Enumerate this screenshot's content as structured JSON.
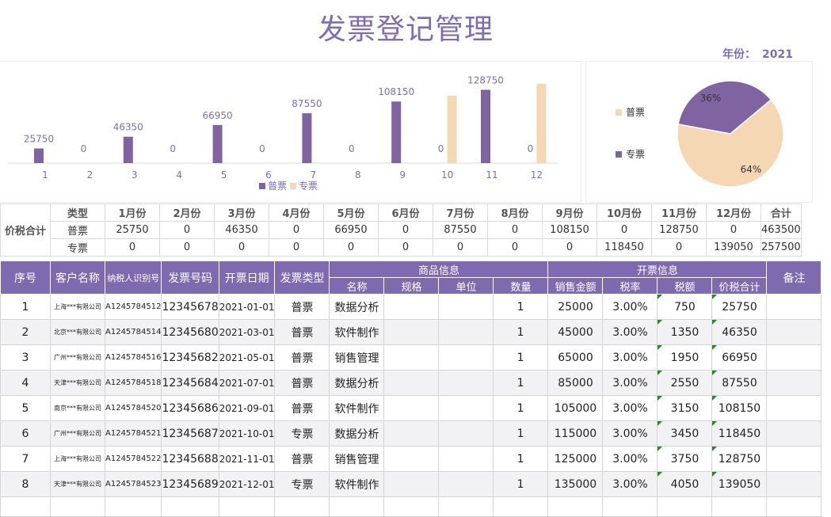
{
  "title": "发票登记管理",
  "year": {
    "label": "年份：",
    "value": "2021"
  },
  "colors": {
    "accent": "#7F6DB3",
    "general": "#8064A2",
    "special": "#F5D7B4"
  },
  "chart_data": [
    {
      "type": "bar",
      "categories": [
        "1",
        "2",
        "3",
        "4",
        "5",
        "6",
        "7",
        "8",
        "9",
        "10",
        "11",
        "12"
      ],
      "series": [
        {
          "name": "普票",
          "values": [
            25750,
            0,
            46350,
            0,
            66950,
            0,
            87550,
            0,
            108150,
            0,
            128750,
            0
          ]
        },
        {
          "name": "专票",
          "values": [
            0,
            0,
            0,
            0,
            0,
            0,
            0,
            0,
            0,
            118450,
            0,
            139050
          ]
        }
      ],
      "data_labels": [
        "25750",
        "0",
        "46350",
        "0",
        "66950",
        "0",
        "87550",
        "0",
        "108150",
        "0",
        "128750",
        "0"
      ],
      "legend": [
        "普票",
        "专票"
      ],
      "legend_position": "bottom",
      "grid": false
    },
    {
      "type": "pie",
      "categories": [
        "普票",
        "专票"
      ],
      "values": [
        64,
        36
      ],
      "labels": [
        "64%",
        "36%"
      ],
      "legend_position": "left"
    }
  ],
  "summary": {
    "row_label": "价税合计",
    "type_header": "类型",
    "months": [
      "1月份",
      "2月份",
      "3月份",
      "4月份",
      "5月份",
      "6月份",
      "7月份",
      "8月份",
      "9月份",
      "10月份",
      "11月份",
      "12月份"
    ],
    "total_header": "合计",
    "rows": [
      {
        "type": "普票",
        "values": [
          "25750",
          "0",
          "46350",
          "0",
          "66950",
          "0",
          "87550",
          "0",
          "108150",
          "0",
          "128750",
          "0"
        ],
        "total": "463500"
      },
      {
        "type": "专票",
        "values": [
          "0",
          "0",
          "0",
          "0",
          "0",
          "0",
          "0",
          "0",
          "0",
          "118450",
          "0",
          "139050"
        ],
        "total": "257500"
      }
    ]
  },
  "table": {
    "headers": {
      "seq": "序号",
      "customer": "客户名称",
      "taxid": "纳税人识别号",
      "invoice_no": "发票号码",
      "date": "开票日期",
      "inv_type": "发票类型",
      "goods": "商品信息",
      "invoice_info": "开票信息",
      "remark": "备注"
    },
    "subheaders": {
      "name": "名称",
      "spec": "规格",
      "unit": "单位",
      "qty": "数量",
      "amount": "销售金额",
      "rate": "税率",
      "tax": "税额",
      "total": "价税合计"
    },
    "rows": [
      {
        "seq": "1",
        "customer": "上海***有限公司",
        "taxid": "A1245784512",
        "no": "12345678",
        "date": "2021-01-01",
        "type": "普票",
        "name": "数据分析",
        "spec": "",
        "unit": "",
        "qty": "1",
        "amount": "25000",
        "rate": "3.00%",
        "tax": "750",
        "total": "25750",
        "remark": ""
      },
      {
        "seq": "2",
        "customer": "北京***有限公司",
        "taxid": "A1245784514",
        "no": "12345680",
        "date": "2021-03-01",
        "type": "普票",
        "name": "软件制作",
        "spec": "",
        "unit": "",
        "qty": "1",
        "amount": "45000",
        "rate": "3.00%",
        "tax": "1350",
        "total": "46350",
        "remark": ""
      },
      {
        "seq": "3",
        "customer": "广州***有限公司",
        "taxid": "A1245784516",
        "no": "12345682",
        "date": "2021-05-01",
        "type": "普票",
        "name": "销售管理",
        "spec": "",
        "unit": "",
        "qty": "1",
        "amount": "65000",
        "rate": "3.00%",
        "tax": "1950",
        "total": "66950",
        "remark": ""
      },
      {
        "seq": "4",
        "customer": "天津***有限公司",
        "taxid": "A1245784518",
        "no": "12345684",
        "date": "2021-07-01",
        "type": "普票",
        "name": "数据分析",
        "spec": "",
        "unit": "",
        "qty": "1",
        "amount": "85000",
        "rate": "3.00%",
        "tax": "2550",
        "total": "87550",
        "remark": ""
      },
      {
        "seq": "5",
        "customer": "南京***有限公司",
        "taxid": "A1245784520",
        "no": "12345686",
        "date": "2021-09-01",
        "type": "普票",
        "name": "软件制作",
        "spec": "",
        "unit": "",
        "qty": "1",
        "amount": "105000",
        "rate": "3.00%",
        "tax": "3150",
        "total": "108150",
        "remark": ""
      },
      {
        "seq": "6",
        "customer": "广州***有限公司",
        "taxid": "A1245784521",
        "no": "12345687",
        "date": "2021-10-01",
        "type": "专票",
        "name": "数据分析",
        "spec": "",
        "unit": "",
        "qty": "1",
        "amount": "115000",
        "rate": "3.00%",
        "tax": "3450",
        "total": "118450",
        "remark": ""
      },
      {
        "seq": "7",
        "customer": "上海***有限公司",
        "taxid": "A1245784522",
        "no": "12345688",
        "date": "2021-11-01",
        "type": "普票",
        "name": "销售管理",
        "spec": "",
        "unit": "",
        "qty": "1",
        "amount": "125000",
        "rate": "3.00%",
        "tax": "3750",
        "total": "128750",
        "remark": ""
      },
      {
        "seq": "8",
        "customer": "天津***有限公司",
        "taxid": "A1245784523",
        "no": "12345689",
        "date": "2021-12-01",
        "type": "专票",
        "name": "软件制作",
        "spec": "",
        "unit": "",
        "qty": "1",
        "amount": "135000",
        "rate": "3.00%",
        "tax": "4050",
        "total": "139050",
        "remark": ""
      }
    ]
  }
}
